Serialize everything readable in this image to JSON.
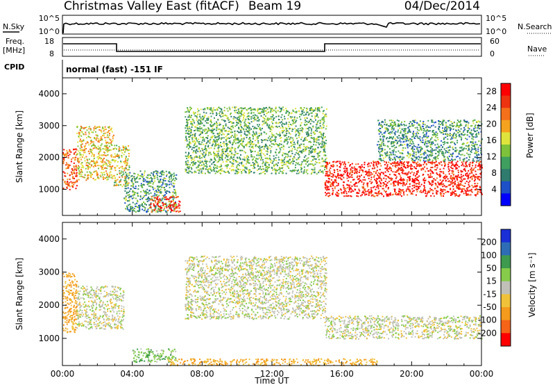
{
  "header": {
    "station": "Christmas Valley East (fitACF)",
    "beam": "Beam 19",
    "date": "04/Dec/2014"
  },
  "status": {
    "noise_left": {
      "label": "N.Sky",
      "ticks": [
        "10^5",
        "10^0"
      ]
    },
    "noise_right": {
      "label": "N.Search",
      "ticks": [
        "10^5",
        "10^0"
      ]
    },
    "freq": {
      "label": "Freq.",
      "unit": "[MHz]",
      "ticks": [
        "18",
        "8"
      ]
    },
    "nave": {
      "label": "Nave",
      "ticks": [
        "60",
        "0"
      ]
    },
    "cpid_label": "CPID",
    "cpid_value": "normal (fast) -151 IF"
  },
  "chart_data": [
    {
      "type": "heatmap",
      "name": "power",
      "ylabel": "Slant Range [km]",
      "xlabel": "",
      "ylim": [
        180,
        4500
      ],
      "yticks": [
        "1000",
        "2000",
        "3000",
        "4000"
      ],
      "xlim_hours": [
        0,
        24
      ],
      "colorbar": {
        "label": "Power [dB]",
        "ticks": [
          "4",
          "8",
          "12",
          "16",
          "20",
          "24",
          "28"
        ],
        "range": [
          0,
          30
        ],
        "colors": [
          "#0000ff",
          "#1e50c8",
          "#2f7b6e",
          "#3f9f5f",
          "#7dc23a",
          "#dfe43d",
          "#f5a31f",
          "#f5701a",
          "#ee3311",
          "#ff0000"
        ]
      },
      "features": [
        {
          "start_h": 0.0,
          "end_h": 0.8,
          "range_lo": 1000,
          "range_hi": 2300,
          "value": 24
        },
        {
          "start_h": 0.8,
          "end_h": 2.9,
          "range_lo": 1300,
          "range_hi": 3000,
          "value": 18
        },
        {
          "start_h": 2.9,
          "end_h": 3.8,
          "range_lo": 1100,
          "range_hi": 2400,
          "value": 16
        },
        {
          "start_h": 3.5,
          "end_h": 6.5,
          "range_lo": 300,
          "range_hi": 1600,
          "value": 10
        },
        {
          "start_h": 5.0,
          "end_h": 6.7,
          "range_lo": 300,
          "range_hi": 800,
          "value": 26
        },
        {
          "start_h": 7.0,
          "end_h": 15.1,
          "range_lo": 1500,
          "range_hi": 3600,
          "value": 12
        },
        {
          "start_h": 15.0,
          "end_h": 24.0,
          "range_lo": 800,
          "range_hi": 1900,
          "value": 28
        },
        {
          "start_h": 18.0,
          "end_h": 24.0,
          "range_lo": 1900,
          "range_hi": 3200,
          "value": 10
        }
      ]
    },
    {
      "type": "heatmap",
      "name": "velocity",
      "ylabel": "Slant Range [km]",
      "xlabel": "Time UT",
      "ylim": [
        180,
        4500
      ],
      "yticks": [
        "1000",
        "2000",
        "3000",
        "4000"
      ],
      "xticks": [
        "00:00",
        "04:00",
        "08:00",
        "12:00",
        "16:00",
        "20:00",
        "00:00"
      ],
      "xlim_hours": [
        0,
        24
      ],
      "colorbar": {
        "label": "Velocity [m s⁻¹]",
        "ticks": [
          "200",
          "100",
          "50",
          "15",
          "-15",
          "-50",
          "-100",
          "-200"
        ],
        "colors": [
          "#1a2fd6",
          "#2e6db5",
          "#3d9a4e",
          "#86cc4a",
          "#c0c0b8",
          "#f0c23a",
          "#f49a1c",
          "#f66418",
          "#ff0000"
        ]
      },
      "features": [
        {
          "start_h": 0.0,
          "end_h": 0.8,
          "range_lo": 1200,
          "range_hi": 3000,
          "value": -60
        },
        {
          "start_h": 0.8,
          "end_h": 3.5,
          "range_lo": 1300,
          "range_hi": 2600,
          "value": 0
        },
        {
          "start_h": 4.0,
          "end_h": 6.5,
          "range_lo": 300,
          "range_hi": 700,
          "value": 40
        },
        {
          "start_h": 7.0,
          "end_h": 15.1,
          "range_lo": 1600,
          "range_hi": 3500,
          "value": 0
        },
        {
          "start_h": 15.0,
          "end_h": 24.0,
          "range_lo": 1000,
          "range_hi": 1700,
          "value": 0
        },
        {
          "start_h": 6.0,
          "end_h": 18.0,
          "range_lo": 200,
          "range_hi": 400,
          "value": -50
        }
      ]
    }
  ]
}
